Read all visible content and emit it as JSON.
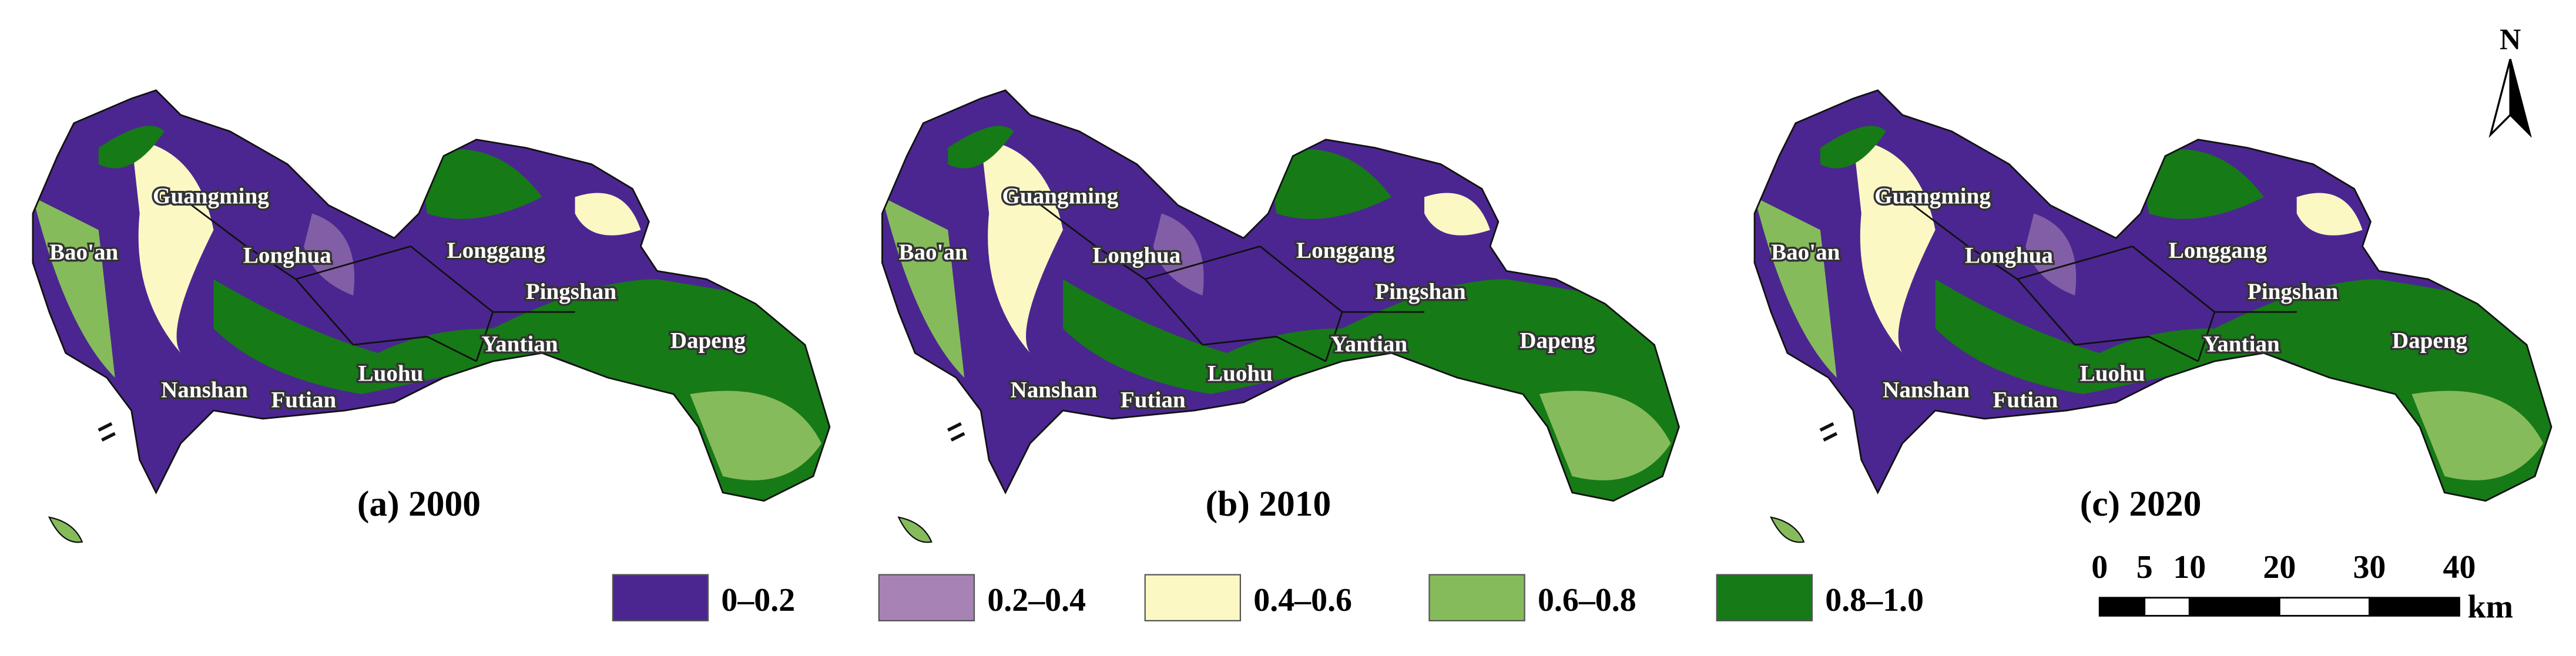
{
  "panels": [
    {
      "caption": "(a) 2000",
      "districts": [
        "Bao'an",
        "Guangming",
        "Longhua",
        "Longgang",
        "Pingshan",
        "Yantian",
        "Dapeng",
        "Luohu",
        "Futian",
        "Nanshan"
      ]
    },
    {
      "caption": "(b) 2010",
      "districts": [
        "Bao'an",
        "Guangming",
        "Longhua",
        "Longgang",
        "Pingshan",
        "Yantian",
        "Dapeng",
        "Luohu",
        "Futian",
        "Nanshan"
      ]
    },
    {
      "caption": "(c) 2020",
      "districts": [
        "Bao'an",
        "Guangming",
        "Longhua",
        "Longgang",
        "Pingshan",
        "Yantian",
        "Dapeng",
        "Luohu",
        "Futian",
        "Nanshan"
      ]
    }
  ],
  "legend": {
    "items": [
      {
        "label": "0–0.2",
        "color": "#4b2690"
      },
      {
        "label": "0.2–0.4",
        "color": "#a783b5"
      },
      {
        "label": "0.4–0.6",
        "color": "#fbf8c4"
      },
      {
        "label": "0.6–0.8",
        "color": "#86bb5c"
      },
      {
        "label": "0.8–1.0",
        "color": "#167a17"
      }
    ]
  },
  "scale_bar": {
    "ticks": [
      0,
      5,
      10,
      20,
      30,
      40
    ],
    "unit": "km"
  },
  "north": "N"
}
